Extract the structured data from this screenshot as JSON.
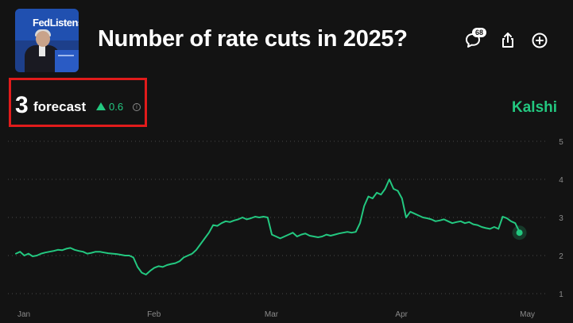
{
  "market": {
    "title": "Number of rate cuts in 2025?",
    "thumbnail_banner_text": "FedListens"
  },
  "toolbar": {
    "comment_icon": "speech-bubble-icon",
    "comment_count": "68",
    "share_icon": "share-icon",
    "add_icon": "plus-circle-icon"
  },
  "forecast": {
    "value": "3",
    "label": "forecast",
    "change": "0.6",
    "change_direction": "up",
    "info_icon": "i"
  },
  "brand": {
    "name": "Kalshi",
    "color": "#23c880"
  },
  "colors": {
    "background": "#131313",
    "accent": "#23c880",
    "highlight_box": "#e11b1b",
    "gridline": "#4a4a4a",
    "axis_text": "#8a8a8a"
  },
  "chart_data": {
    "type": "line",
    "ylim": [
      1,
      5
    ],
    "yticks": [
      "1",
      "2",
      "3",
      "4",
      "5"
    ],
    "x_labels": [
      "Jan",
      "Feb",
      "Mar",
      "Apr",
      "May"
    ],
    "x_label_days": [
      0,
      31,
      59,
      90,
      120
    ],
    "grid": "horizontal-dotted",
    "series": [
      {
        "x": [
          0,
          1,
          2,
          3,
          4,
          5,
          6,
          7,
          8,
          9,
          10,
          11,
          12,
          13,
          14,
          15,
          16,
          17,
          18,
          19,
          20,
          21,
          22,
          23,
          24,
          25,
          26,
          27,
          28,
          29,
          30,
          31,
          32,
          33,
          34,
          35,
          36,
          37,
          38,
          39,
          40,
          41,
          42,
          43,
          44,
          45,
          46,
          47,
          48,
          49,
          50,
          51,
          52,
          53,
          54,
          55,
          56,
          57,
          58,
          59,
          60,
          61,
          62,
          63,
          64,
          65,
          66,
          67,
          68,
          69,
          70,
          71,
          72,
          73,
          74,
          75,
          76,
          77,
          78,
          79,
          80,
          81,
          82,
          83,
          84,
          85,
          86,
          87,
          88,
          89,
          90,
          91,
          92,
          93,
          94,
          95,
          96,
          97,
          98,
          99,
          100,
          101,
          102,
          103,
          104,
          105,
          106,
          107,
          108,
          109,
          110,
          111,
          112,
          113,
          114,
          115,
          116,
          117,
          118,
          119,
          120
        ],
        "y": [
          2.05,
          2.1,
          2.0,
          2.05,
          1.98,
          2.0,
          2.05,
          2.08,
          2.1,
          2.12,
          2.15,
          2.14,
          2.18,
          2.2,
          2.15,
          2.12,
          2.1,
          2.05,
          2.07,
          2.1,
          2.1,
          2.08,
          2.06,
          2.05,
          2.04,
          2.02,
          2.0,
          2.0,
          1.95,
          1.7,
          1.55,
          1.5,
          1.6,
          1.68,
          1.72,
          1.7,
          1.75,
          1.78,
          1.8,
          1.85,
          1.95,
          2.0,
          2.05,
          2.15,
          2.3,
          2.45,
          2.6,
          2.8,
          2.78,
          2.85,
          2.9,
          2.88,
          2.92,
          2.95,
          3.0,
          2.95,
          2.98,
          3.02,
          3.0,
          3.02,
          3.0,
          2.55,
          2.5,
          2.45,
          2.5,
          2.55,
          2.6,
          2.5,
          2.55,
          2.58,
          2.52,
          2.5,
          2.48,
          2.5,
          2.55,
          2.52,
          2.55,
          2.58,
          2.6,
          2.62,
          2.6,
          2.62,
          2.85,
          3.3,
          3.55,
          3.5,
          3.65,
          3.6,
          3.75,
          4.0,
          3.75,
          3.7,
          3.5,
          3.0,
          3.15,
          3.1,
          3.05,
          3.0,
          2.98,
          2.95,
          2.9,
          2.92,
          2.95,
          2.9,
          2.85,
          2.88,
          2.9,
          2.85,
          2.88,
          2.82,
          2.8,
          2.75,
          2.72,
          2.7,
          2.75,
          2.7,
          3.02,
          2.98,
          2.9,
          2.85,
          2.62
        ]
      }
    ],
    "current_point": {
      "x": 120,
      "y": 2.6
    }
  }
}
